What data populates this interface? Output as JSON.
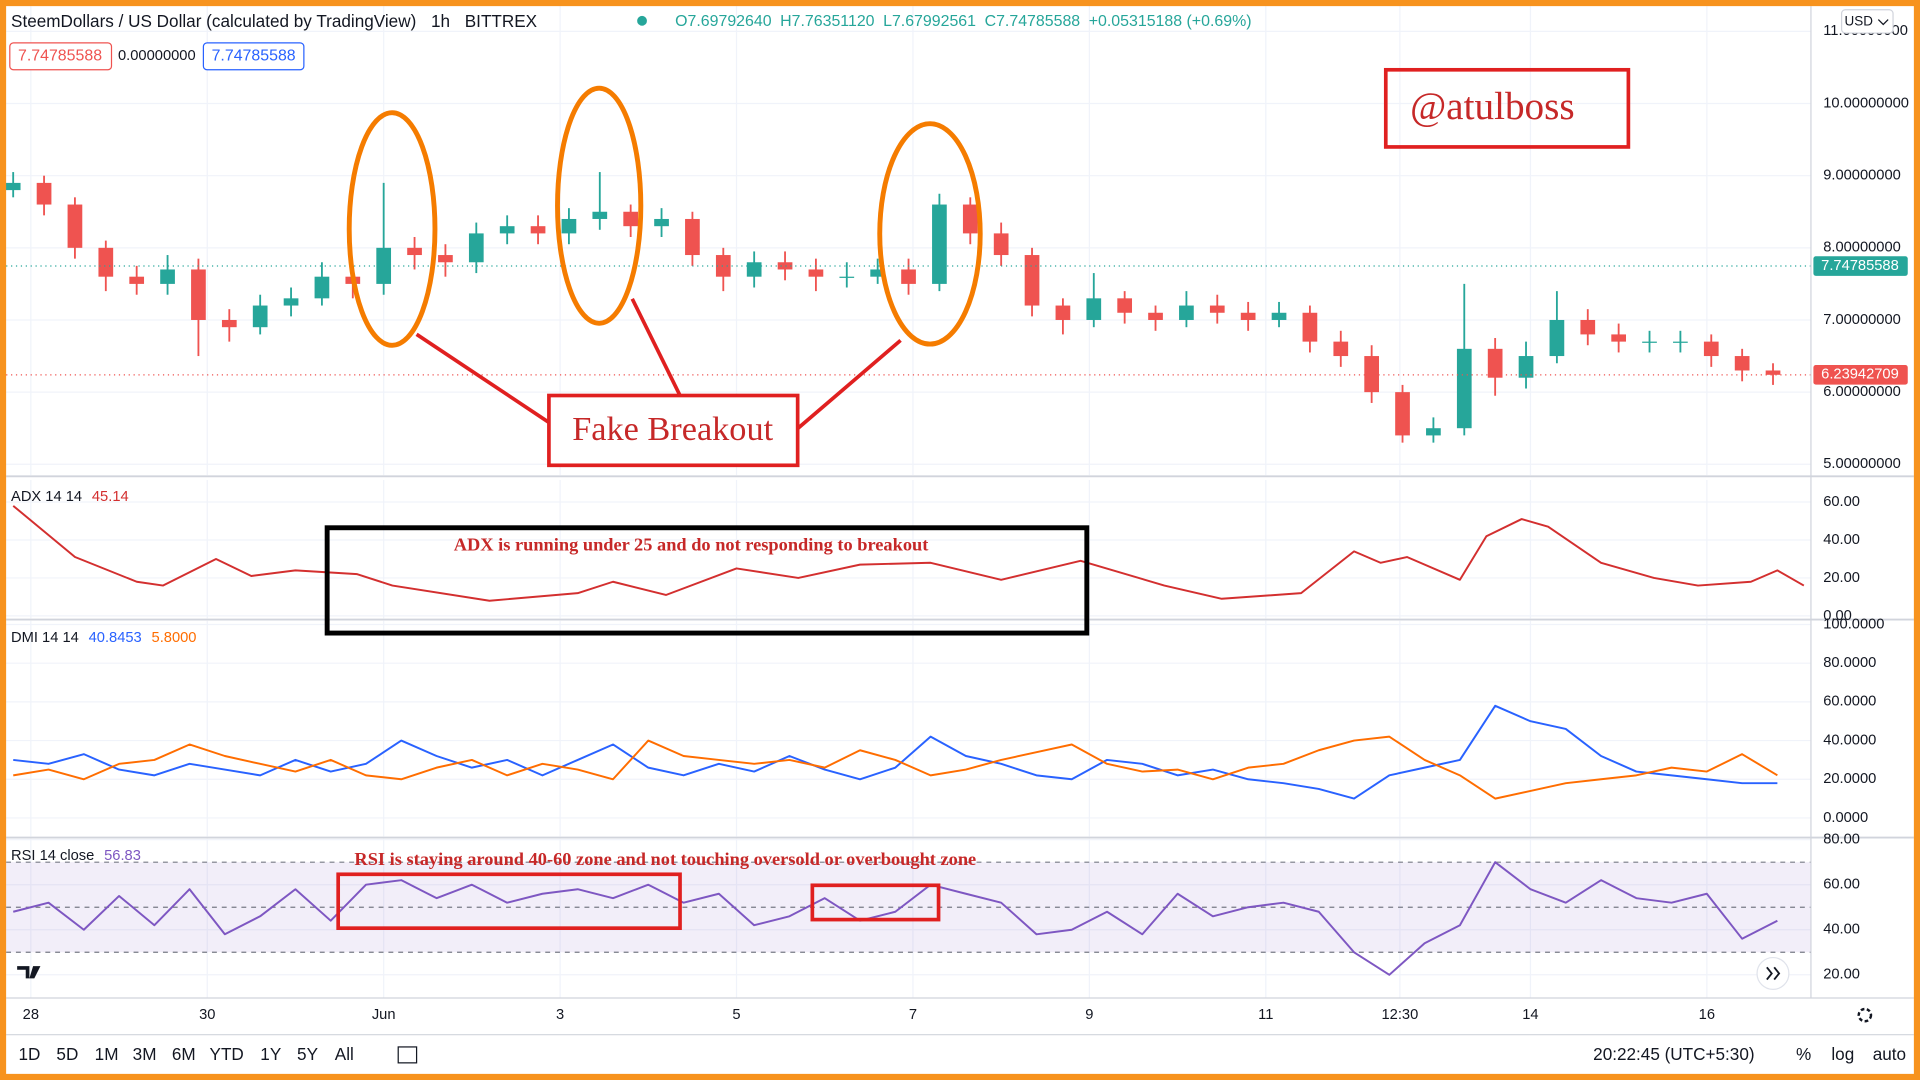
{
  "header": {
    "symbol": "SteemDollars / US Dollar (calculated by TradingView)",
    "interval": "1h",
    "exchange": "BITTREX",
    "ohlc": [
      "O7.69792640",
      "H7.76351120",
      "L7.67992561",
      "C7.74785588",
      "+0.05315188 (+0.69%)"
    ],
    "boxes": [
      "7.74785588",
      "0.00000000",
      "7.74785588"
    ],
    "currency": "USD"
  },
  "annotations": {
    "author": "@atulboss",
    "breakout": "Fake Breakout",
    "adx_note": "ADX is running under 25 and do not responding to breakout",
    "rsi_note": "RSI is staying around 40-60 zone and not touching oversold or overbought zone"
  },
  "toolbar": {
    "ranges": [
      "1D",
      "5D",
      "1M",
      "3M",
      "6M",
      "YTD",
      "1Y",
      "5Y",
      "All"
    ],
    "clock": "20:22:45 (UTC+5:30)",
    "options": [
      "%",
      "log",
      "auto"
    ]
  },
  "chart_data": [
    {
      "type": "candlestick",
      "x": [
        -0.2,
        0.15,
        0.5,
        0.85,
        1.2,
        1.55,
        1.9,
        2.25,
        2.6,
        2.95,
        3.3,
        3.65,
        4.0,
        4.35,
        4.7,
        5.05,
        5.4,
        5.75,
        6.1,
        6.45,
        6.8,
        7.15,
        7.5,
        7.85,
        8.2,
        8.55,
        8.9,
        9.25,
        9.6,
        9.95,
        10.3,
        10.65,
        11.0,
        11.35,
        11.7,
        12.05,
        12.4,
        12.75,
        13.1,
        13.45,
        13.8,
        14.15,
        14.5,
        14.85,
        15.2,
        15.55,
        15.9,
        16.25,
        16.6,
        16.95,
        17.3,
        17.65,
        18.0,
        18.35,
        18.7,
        19.05,
        19.4,
        19.75
      ],
      "open": [
        8.8,
        8.9,
        8.6,
        8.0,
        7.6,
        7.5,
        7.7,
        7.0,
        6.9,
        7.2,
        7.3,
        7.6,
        7.5,
        8.0,
        7.9,
        7.8,
        8.2,
        8.3,
        8.2,
        8.4,
        8.5,
        8.3,
        8.4,
        7.9,
        7.6,
        7.8,
        7.7,
        7.6,
        7.6,
        7.7,
        7.5,
        8.6,
        8.2,
        7.9,
        7.2,
        7.0,
        7.3,
        7.1,
        7.0,
        7.2,
        7.1,
        7.0,
        7.1,
        6.7,
        6.5,
        6.0,
        5.4,
        5.5,
        6.6,
        6.2,
        6.5,
        7.0,
        6.8,
        6.7,
        6.7,
        6.7,
        6.5,
        6.3
      ],
      "high": [
        9.05,
        9.0,
        8.7,
        8.1,
        7.75,
        7.9,
        7.85,
        7.15,
        7.35,
        7.45,
        7.8,
        7.75,
        8.9,
        8.15,
        8.05,
        8.35,
        8.45,
        8.45,
        8.55,
        9.05,
        8.6,
        8.55,
        8.5,
        8.0,
        7.95,
        7.95,
        7.85,
        7.8,
        7.85,
        7.85,
        8.75,
        8.7,
        8.35,
        8.0,
        7.3,
        7.65,
        7.4,
        7.2,
        7.4,
        7.35,
        7.25,
        7.25,
        7.2,
        6.85,
        6.65,
        6.1,
        5.65,
        7.5,
        6.75,
        6.7,
        7.4,
        7.15,
        6.95,
        6.85,
        6.85,
        6.8,
        6.6,
        6.4
      ],
      "low": [
        8.7,
        8.45,
        7.85,
        7.4,
        7.35,
        7.35,
        6.5,
        6.7,
        6.8,
        7.05,
        7.2,
        7.3,
        7.35,
        7.7,
        7.6,
        7.65,
        8.05,
        8.05,
        8.05,
        8.25,
        8.15,
        8.15,
        7.75,
        7.4,
        7.45,
        7.55,
        7.4,
        7.45,
        7.5,
        7.35,
        7.4,
        8.05,
        7.75,
        7.05,
        6.8,
        6.9,
        6.95,
        6.85,
        6.9,
        6.95,
        6.85,
        6.9,
        6.55,
        6.35,
        5.85,
        5.3,
        5.3,
        5.4,
        5.95,
        6.05,
        6.4,
        6.65,
        6.55,
        6.55,
        6.55,
        6.35,
        6.15,
        6.1
      ],
      "close": [
        8.9,
        8.6,
        8.0,
        7.6,
        7.5,
        7.7,
        7.0,
        6.9,
        7.2,
        7.3,
        7.6,
        7.5,
        8.0,
        7.9,
        7.8,
        8.2,
        8.3,
        8.2,
        8.4,
        8.5,
        8.3,
        8.4,
        7.9,
        7.6,
        7.8,
        7.7,
        7.6,
        7.6,
        7.7,
        7.5,
        8.6,
        8.2,
        7.9,
        7.2,
        7.0,
        7.3,
        7.1,
        7.0,
        7.2,
        7.1,
        7.0,
        7.1,
        6.7,
        6.5,
        6.0,
        5.4,
        5.5,
        6.6,
        6.2,
        6.5,
        7.0,
        6.8,
        6.7,
        6.7,
        6.7,
        6.5,
        6.3,
        6.24
      ],
      "up_color": "#26a69a",
      "down_color": "#ef5350",
      "xlim": [
        -0.28,
        20.18
      ],
      "xticks": [
        {
          "value": 0,
          "label": "28"
        },
        {
          "value": 2,
          "label": "30"
        },
        {
          "value": 4,
          "label": "Jun"
        },
        {
          "value": 6,
          "label": "3"
        },
        {
          "value": 8,
          "label": "5"
        },
        {
          "value": 10,
          "label": "7"
        },
        {
          "value": 12,
          "label": "9"
        },
        {
          "value": 14,
          "label": "11"
        },
        {
          "value": 15.52,
          "label": "12:30"
        },
        {
          "value": 17,
          "label": "14"
        },
        {
          "value": 19,
          "label": "16"
        }
      ],
      "ylim": [
        4.85,
        11.35
      ],
      "yticks": [
        {
          "value": 5,
          "label": "5.00000000"
        },
        {
          "value": 6,
          "label": "6.00000000"
        },
        {
          "value": 7,
          "label": "7.00000000"
        },
        {
          "value": 8,
          "label": "8.00000000"
        },
        {
          "value": 9,
          "label": "9.00000000"
        },
        {
          "value": 10,
          "label": "10.00000000"
        },
        {
          "value": 11,
          "label": "11.00000000"
        }
      ],
      "grid": true,
      "price_tags": [
        {
          "value": 7.74785588,
          "color": "#26a69a"
        },
        {
          "value": 6.23942709,
          "color": "#ef5350"
        }
      ]
    },
    {
      "type": "line",
      "title": "ADX 14 14",
      "x": [
        -0.2,
        0.5,
        1.2,
        1.5,
        2.1,
        2.5,
        3.0,
        3.7,
        4.1,
        5.2,
        6.2,
        6.6,
        7.2,
        8.0,
        8.7,
        9.4,
        10.2,
        11.0,
        11.9,
        12.85,
        13.5,
        14.4,
        15.0,
        15.3,
        15.6,
        16.2,
        16.5,
        16.9,
        17.2,
        17.8,
        18.4,
        18.9,
        19.5,
        19.8,
        20.1
      ],
      "series": [
        {
          "color": "#d32f2f",
          "readout": "45.14",
          "values": [
            58,
            31,
            18,
            16,
            30,
            21,
            24,
            22,
            16,
            8,
            12,
            18,
            11,
            25,
            20,
            27,
            28,
            19,
            29,
            16,
            9,
            12,
            34,
            28,
            31,
            19,
            42,
            51,
            47,
            28,
            20,
            16,
            18,
            24,
            16
          ]
        }
      ],
      "ylim": [
        -1.3,
        71.6
      ],
      "yticks": [
        {
          "value": 0,
          "label": "0.00"
        },
        {
          "value": 20,
          "label": "20.00"
        },
        {
          "value": 40,
          "label": "40.00"
        },
        {
          "value": 60,
          "label": "60.00"
        }
      ],
      "grid": true
    },
    {
      "type": "line",
      "title": "DMI 14 14",
      "x": [
        -0.2,
        0.2,
        0.6,
        1.0,
        1.4,
        1.8,
        2.2,
        2.6,
        3.0,
        3.4,
        3.8,
        4.2,
        4.6,
        5.0,
        5.4,
        5.8,
        6.2,
        6.6,
        7.0,
        7.4,
        7.8,
        8.2,
        8.6,
        9.0,
        9.4,
        9.8,
        10.2,
        10.6,
        11.0,
        11.4,
        11.8,
        12.2,
        12.6,
        13.0,
        13.4,
        13.8,
        14.2,
        14.6,
        15.0,
        15.4,
        15.8,
        16.2,
        16.6,
        17.0,
        17.4,
        17.8,
        18.2,
        18.6,
        19.0,
        19.4,
        19.8
      ],
      "series": [
        {
          "color": "#2962ff",
          "readout": "40.8453",
          "values": [
            30,
            28,
            33,
            25,
            22,
            28,
            25,
            22,
            30,
            24,
            28,
            40,
            32,
            26,
            30,
            22,
            30,
            38,
            26,
            22,
            28,
            24,
            32,
            25,
            20,
            26,
            42,
            32,
            28,
            22,
            20,
            30,
            28,
            22,
            25,
            20,
            18,
            15,
            10,
            22,
            26,
            30,
            58,
            50,
            46,
            32,
            24,
            22,
            20,
            18,
            18
          ]
        },
        {
          "color": "#ff6d00",
          "readout": "5.8000",
          "values": [
            22,
            25,
            20,
            28,
            30,
            38,
            32,
            28,
            24,
            30,
            22,
            20,
            26,
            30,
            22,
            28,
            25,
            20,
            40,
            32,
            30,
            28,
            30,
            26,
            35,
            30,
            22,
            25,
            30,
            34,
            38,
            28,
            24,
            25,
            20,
            26,
            28,
            35,
            40,
            42,
            30,
            22,
            10,
            14,
            18,
            20,
            22,
            26,
            24,
            33,
            22
          ]
        }
      ],
      "ylim": [
        -9.5,
        101.9
      ],
      "yticks": [
        {
          "value": 0,
          "label": "0.0000"
        },
        {
          "value": 20,
          "label": "20.0000"
        },
        {
          "value": 40,
          "label": "40.0000"
        },
        {
          "value": 60,
          "label": "60.0000"
        },
        {
          "value": 80,
          "label": "80.0000"
        },
        {
          "value": 100,
          "label": "100.0000"
        }
      ],
      "grid": true
    },
    {
      "type": "line",
      "title": "RSI 14 close",
      "x": [
        -0.2,
        0.2,
        0.6,
        1.0,
        1.4,
        1.8,
        2.2,
        2.6,
        3.0,
        3.4,
        3.8,
        4.2,
        4.6,
        5.0,
        5.4,
        5.8,
        6.2,
        6.6,
        7.0,
        7.4,
        7.8,
        8.2,
        8.6,
        9.0,
        9.4,
        9.8,
        10.2,
        10.6,
        11.0,
        11.4,
        11.8,
        12.2,
        12.6,
        13.0,
        13.4,
        13.8,
        14.2,
        14.6,
        15.0,
        15.4,
        15.8,
        16.2,
        16.6,
        17.0,
        17.4,
        17.8,
        18.2,
        18.6,
        19.0,
        19.4,
        19.8
      ],
      "series": [
        {
          "color": "#7e57c2",
          "readout": "56.83",
          "values": [
            48,
            52,
            40,
            55,
            42,
            58,
            38,
            46,
            58,
            44,
            60,
            62,
            54,
            60,
            52,
            56,
            58,
            54,
            60,
            52,
            56,
            42,
            46,
            54,
            44,
            48,
            60,
            56,
            52,
            38,
            40,
            48,
            38,
            56,
            46,
            50,
            52,
            48,
            30,
            20,
            34,
            42,
            70,
            58,
            52,
            62,
            54,
            52,
            56,
            36,
            44
          ]
        }
      ],
      "levels": [
        30,
        50,
        70
      ],
      "band_color": "#7e57c2",
      "ylim": [
        9.7,
        80.4
      ],
      "yticks": [
        {
          "value": 20,
          "label": "20.00"
        },
        {
          "value": 40,
          "label": "40.00"
        },
        {
          "value": 60,
          "label": "60.00"
        },
        {
          "value": 80,
          "label": "80.00"
        }
      ],
      "grid": true
    }
  ]
}
